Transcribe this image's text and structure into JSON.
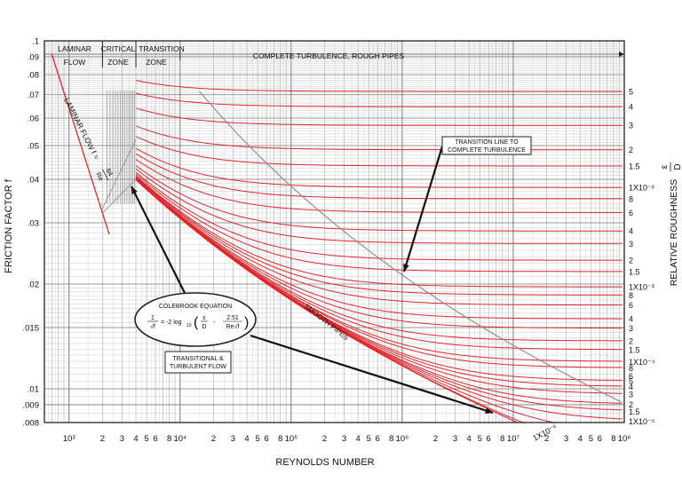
{
  "chart_data": {
    "type": "line",
    "title": "",
    "xlabel": "REYNOLDS NUMBER",
    "ylabel": "FRICTION FACTOR  f",
    "y2label": "RELATIVE ROUGHNESS",
    "y2label_fraction": {
      "num": "ε",
      "den": "D"
    },
    "x_scale": "log",
    "y_scale": "log",
    "xlim": [
      600,
      100000000
    ],
    "ylim": [
      0.008,
      0.1
    ],
    "grid": true,
    "legend": "none",
    "x_ticks": [
      {
        "value": 1000,
        "label": "10³"
      },
      {
        "value": 2000,
        "label": "2"
      },
      {
        "value": 3000,
        "label": "3"
      },
      {
        "value": 4000,
        "label": "4"
      },
      {
        "value": 5000,
        "label": "5"
      },
      {
        "value": 6000,
        "label": "6"
      },
      {
        "value": 8000,
        "label": "8"
      },
      {
        "value": 10000,
        "label": "10⁴"
      },
      {
        "value": 20000,
        "label": "2"
      },
      {
        "value": 30000,
        "label": "3"
      },
      {
        "value": 40000,
        "label": "4"
      },
      {
        "value": 50000,
        "label": "5"
      },
      {
        "value": 60000,
        "label": "6"
      },
      {
        "value": 80000,
        "label": "8"
      },
      {
        "value": 100000,
        "label": "10⁵"
      },
      {
        "value": 200000,
        "label": "2"
      },
      {
        "value": 300000,
        "label": "3"
      },
      {
        "value": 400000,
        "label": "4"
      },
      {
        "value": 500000,
        "label": "5"
      },
      {
        "value": 600000,
        "label": "6"
      },
      {
        "value": 800000,
        "label": "8"
      },
      {
        "value": 1000000,
        "label": "10⁶"
      },
      {
        "value": 2000000,
        "label": "2"
      },
      {
        "value": 3000000,
        "label": "3"
      },
      {
        "value": 4000000,
        "label": "4"
      },
      {
        "value": 5000000,
        "label": "5"
      },
      {
        "value": 6000000,
        "label": "6"
      },
      {
        "value": 8000000,
        "label": "8"
      },
      {
        "value": 10000000,
        "label": "10⁷"
      },
      {
        "value": 20000000,
        "label": "2"
      },
      {
        "value": 30000000,
        "label": "3"
      },
      {
        "value": 40000000,
        "label": "4"
      },
      {
        "value": 50000000,
        "label": "5"
      },
      {
        "value": 60000000,
        "label": "6"
      },
      {
        "value": 80000000,
        "label": "8"
      },
      {
        "value": 100000000,
        "label": "10⁸"
      }
    ],
    "y_ticks": [
      {
        "value": 0.1,
        "label": ".1"
      },
      {
        "value": 0.09,
        "label": ".09"
      },
      {
        "value": 0.08,
        "label": ".08"
      },
      {
        "value": 0.07,
        "label": ".07"
      },
      {
        "value": 0.06,
        "label": ".06"
      },
      {
        "value": 0.05,
        "label": ".05"
      },
      {
        "value": 0.04,
        "label": ".04"
      },
      {
        "value": 0.03,
        "label": ".03"
      },
      {
        "value": 0.02,
        "label": ".02"
      },
      {
        "value": 0.015,
        "label": ".015"
      },
      {
        "value": 0.01,
        "label": ".01"
      },
      {
        "value": 0.009,
        "label": ".009"
      },
      {
        "value": 0.008,
        "label": ".008"
      }
    ],
    "roughness_values": [
      0.05,
      0.04,
      0.03,
      0.02,
      0.015,
      0.01,
      0.008,
      0.006,
      0.004,
      0.003,
      0.002,
      0.0015,
      0.001,
      0.0008,
      0.0006,
      0.0004,
      0.0003,
      0.0002,
      0.00015,
      0.0001,
      8e-05,
      5e-05,
      4e-05,
      3e-05,
      2e-05,
      1.5e-05,
      1e-05,
      5e-06,
      1e-06
    ],
    "right_scale_labels": [
      {
        "value": 0.05,
        "label": "5"
      },
      {
        "value": 0.04,
        "label": "4"
      },
      {
        "value": 0.03,
        "label": "3"
      },
      {
        "value": 0.02,
        "label": "2"
      },
      {
        "value": 0.015,
        "label": "1.5"
      },
      {
        "value": 0.01,
        "label": "1X10⁻²"
      },
      {
        "value": 0.008,
        "label": "8"
      },
      {
        "value": 0.006,
        "label": "6"
      },
      {
        "value": 0.004,
        "label": "4"
      },
      {
        "value": 0.003,
        "label": "3"
      },
      {
        "value": 0.002,
        "label": "2"
      },
      {
        "value": 0.0015,
        "label": "1.5"
      },
      {
        "value": 0.001,
        "label": "1X10⁻³"
      },
      {
        "value": 0.0008,
        "label": "8"
      },
      {
        "value": 0.0006,
        "label": "6"
      },
      {
        "value": 0.0004,
        "label": "4"
      },
      {
        "value": 0.0003,
        "label": "3"
      },
      {
        "value": 0.0002,
        "label": "2"
      },
      {
        "value": 0.00015,
        "label": "1.5"
      },
      {
        "value": 0.0001,
        "label": "1X10⁻⁴"
      },
      {
        "value": 8e-05,
        "label": "8"
      },
      {
        "value": 6e-05,
        "label": "6"
      },
      {
        "value": 5e-05,
        "label": "5"
      },
      {
        "value": 4e-05,
        "label": "4"
      },
      {
        "value": 3e-05,
        "label": "3"
      },
      {
        "value": 2e-05,
        "label": "2"
      },
      {
        "value": 1.5e-05,
        "label": "1.5"
      },
      {
        "value": 1e-05,
        "label": "1X10⁻⁵"
      }
    ],
    "bottom_roughness_label": {
      "value": 1e-06,
      "label": "1X10⁻⁶"
    },
    "laminar_line": {
      "re_range": [
        700,
        2300
      ]
    },
    "smooth_pipe": {
      "re_range": [
        4000,
        100000000
      ]
    },
    "zones": {
      "laminar": {
        "line1": "LAMINAR",
        "line2": "FLOW",
        "re_range": [
          600,
          2000
        ]
      },
      "critical": {
        "line1": "CRITICAL",
        "line2": "ZONE",
        "re_range": [
          2000,
          4000
        ]
      },
      "transition": {
        "line1": "TRANSITION",
        "line2": "ZONE",
        "re_range": [
          4000,
          10000
        ]
      },
      "complete": {
        "label": "COMPLETE TURBULENCE, ROUGH PIPES",
        "re_range": [
          10000,
          100000000
        ]
      }
    },
    "annotations": {
      "laminar_flow": "LAMINAR FLOW f = 64/Re",
      "laminar_prefix": "LAMINAR FLOW f = ",
      "laminar_num": "64",
      "laminar_den": "Re",
      "transition_line_1": "TRANSITION LINE TO",
      "transition_line_2": "COMPLETE TURBULENCE",
      "smooth_pipes": "SMOOTH PIPES",
      "colebrook_title": "COLEBROOK EQUATION",
      "colebrook_lhs_num": "1",
      "colebrook_lhs_den": "√f",
      "colebrook_equals": "= -2 log",
      "colebrook_log_base": "10",
      "colebrook_t1_num": "ε",
      "colebrook_t1_den": "D",
      "colebrook_sign": "-",
      "colebrook_t2_num": "2.51",
      "colebrook_t2_den": "Re√f",
      "transitional_1": "TRANSITIONAL &",
      "transitional_2": "TURBULENT FLOW"
    }
  }
}
